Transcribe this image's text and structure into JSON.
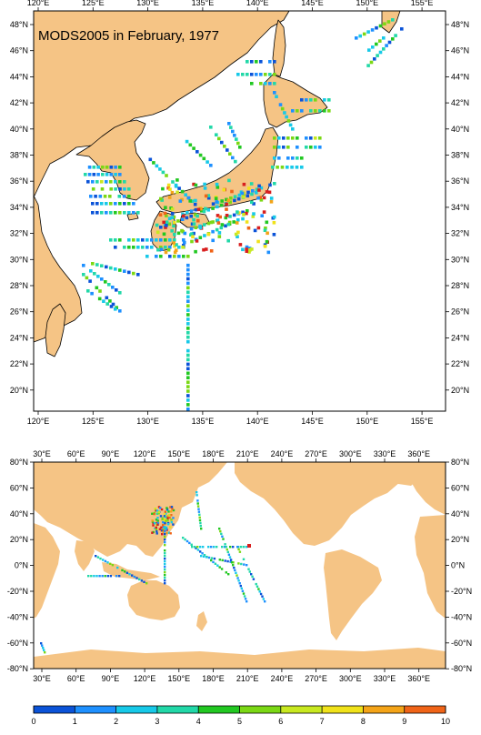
{
  "top_map": {
    "title": "MODS2005 in February, 1977",
    "x_ticks": [
      "120°E",
      "125°E",
      "130°E",
      "135°E",
      "140°E",
      "145°E",
      "150°E",
      "155°E"
    ],
    "y_ticks": [
      "48°N",
      "46°N",
      "44°N",
      "42°N",
      "40°N",
      "38°N",
      "36°N",
      "34°N",
      "32°N",
      "30°N",
      "28°N",
      "26°N",
      "24°N",
      "22°N",
      "20°N"
    ],
    "lon_range": [
      119,
      158
    ],
    "lat_range": [
      18.5,
      49.5
    ]
  },
  "bottom_map": {
    "x_ticks": [
      "30°E",
      "60°E",
      "90°E",
      "120°E",
      "150°E",
      "180°E",
      "210°E",
      "240°E",
      "270°E",
      "300°E",
      "330°E",
      "360°E"
    ],
    "y_ticks": [
      "80°N",
      "60°N",
      "40°N",
      "20°N",
      "0°N",
      "-20°N",
      "-40°N",
      "-60°N",
      "-80°N"
    ],
    "lon_range": [
      20,
      380
    ],
    "lat_range": [
      -80,
      80
    ]
  },
  "colorbar": {
    "labels": [
      "0",
      "1",
      "2",
      "3",
      "4",
      "5",
      "6",
      "7",
      "8",
      "9",
      "10"
    ],
    "colors": [
      "#0b53d8",
      "#1e90ff",
      "#17c9e8",
      "#22d8a8",
      "#22c822",
      "#7bd815",
      "#c8e820",
      "#f0e21a",
      "#f4a418",
      "#f06418",
      "#d81e1e"
    ]
  },
  "colors": {
    "land": "#f5c485",
    "ocean": "#ffffff"
  }
}
